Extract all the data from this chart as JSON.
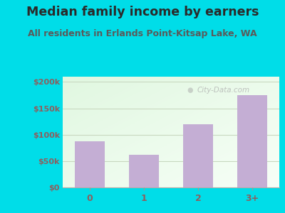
{
  "title": "Median family income by earners",
  "subtitle": "All residents in Erlands Point-Kitsap Lake, WA",
  "categories": [
    "0",
    "1",
    "2",
    "3+"
  ],
  "values": [
    88000,
    62000,
    120000,
    175000
  ],
  "bar_color": "#c4aed4",
  "title_color": "#2a2a2a",
  "subtitle_color": "#5a5a5a",
  "yticks": [
    0,
    50000,
    100000,
    150000,
    200000
  ],
  "ytick_labels": [
    "$0",
    "$50k",
    "$100k",
    "$150k",
    "$200k"
  ],
  "ylim": [
    0,
    210000
  ],
  "outer_bg": "#00dde8",
  "tick_label_color": "#8b6060",
  "watermark": "City-Data.com",
  "title_fontsize": 12.5,
  "subtitle_fontsize": 9,
  "tick_fontsize": 8,
  "grid_color": "#c8d8c0",
  "plot_bg_topleft": [
    0.88,
    0.97,
    0.88
  ],
  "plot_bg_bottomright": [
    0.97,
    1.0,
    0.97
  ]
}
